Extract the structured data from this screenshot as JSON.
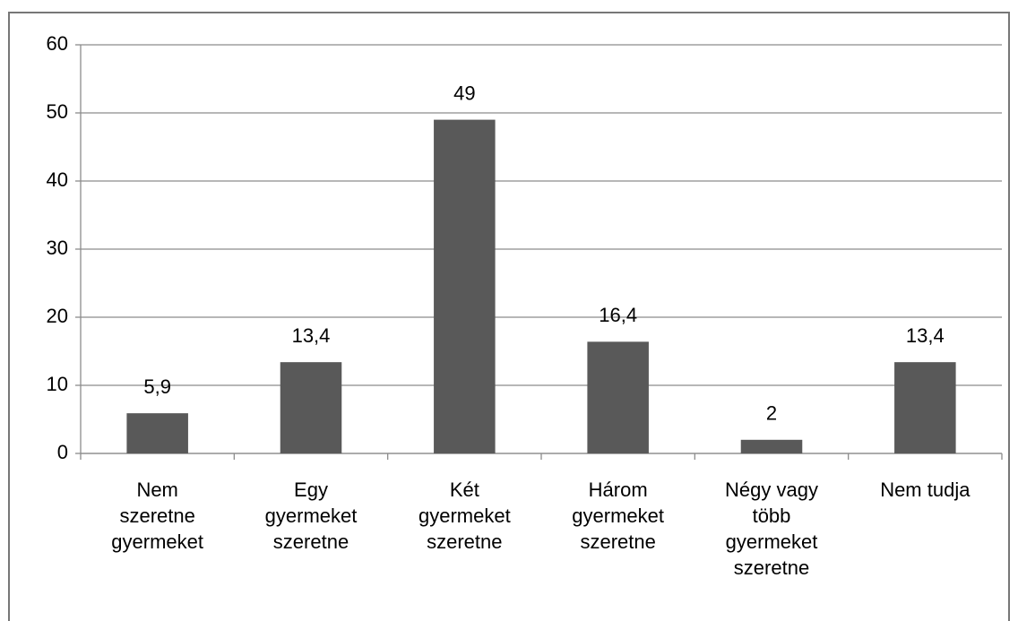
{
  "chart_data": {
    "type": "bar",
    "categories": [
      "Nem\nszeretne\ngyermeket",
      "Egy\ngyermeket\nszeretne",
      "Két\ngyermeket\nszeretne",
      "Három\ngyermeket\nszeretne",
      "Négy vagy\ntöbb\ngyermeket\nszeretne",
      "Nem tudja"
    ],
    "values": [
      5.9,
      13.4,
      49,
      16.4,
      2,
      13.4
    ],
    "value_labels": [
      "5,9",
      "13,4",
      "49",
      "16,4",
      "2",
      "13,4"
    ],
    "color": "#595959",
    "ylim": [
      0,
      60
    ],
    "yticks": [
      0,
      10,
      20,
      30,
      40,
      50,
      60
    ],
    "grid": true
  }
}
